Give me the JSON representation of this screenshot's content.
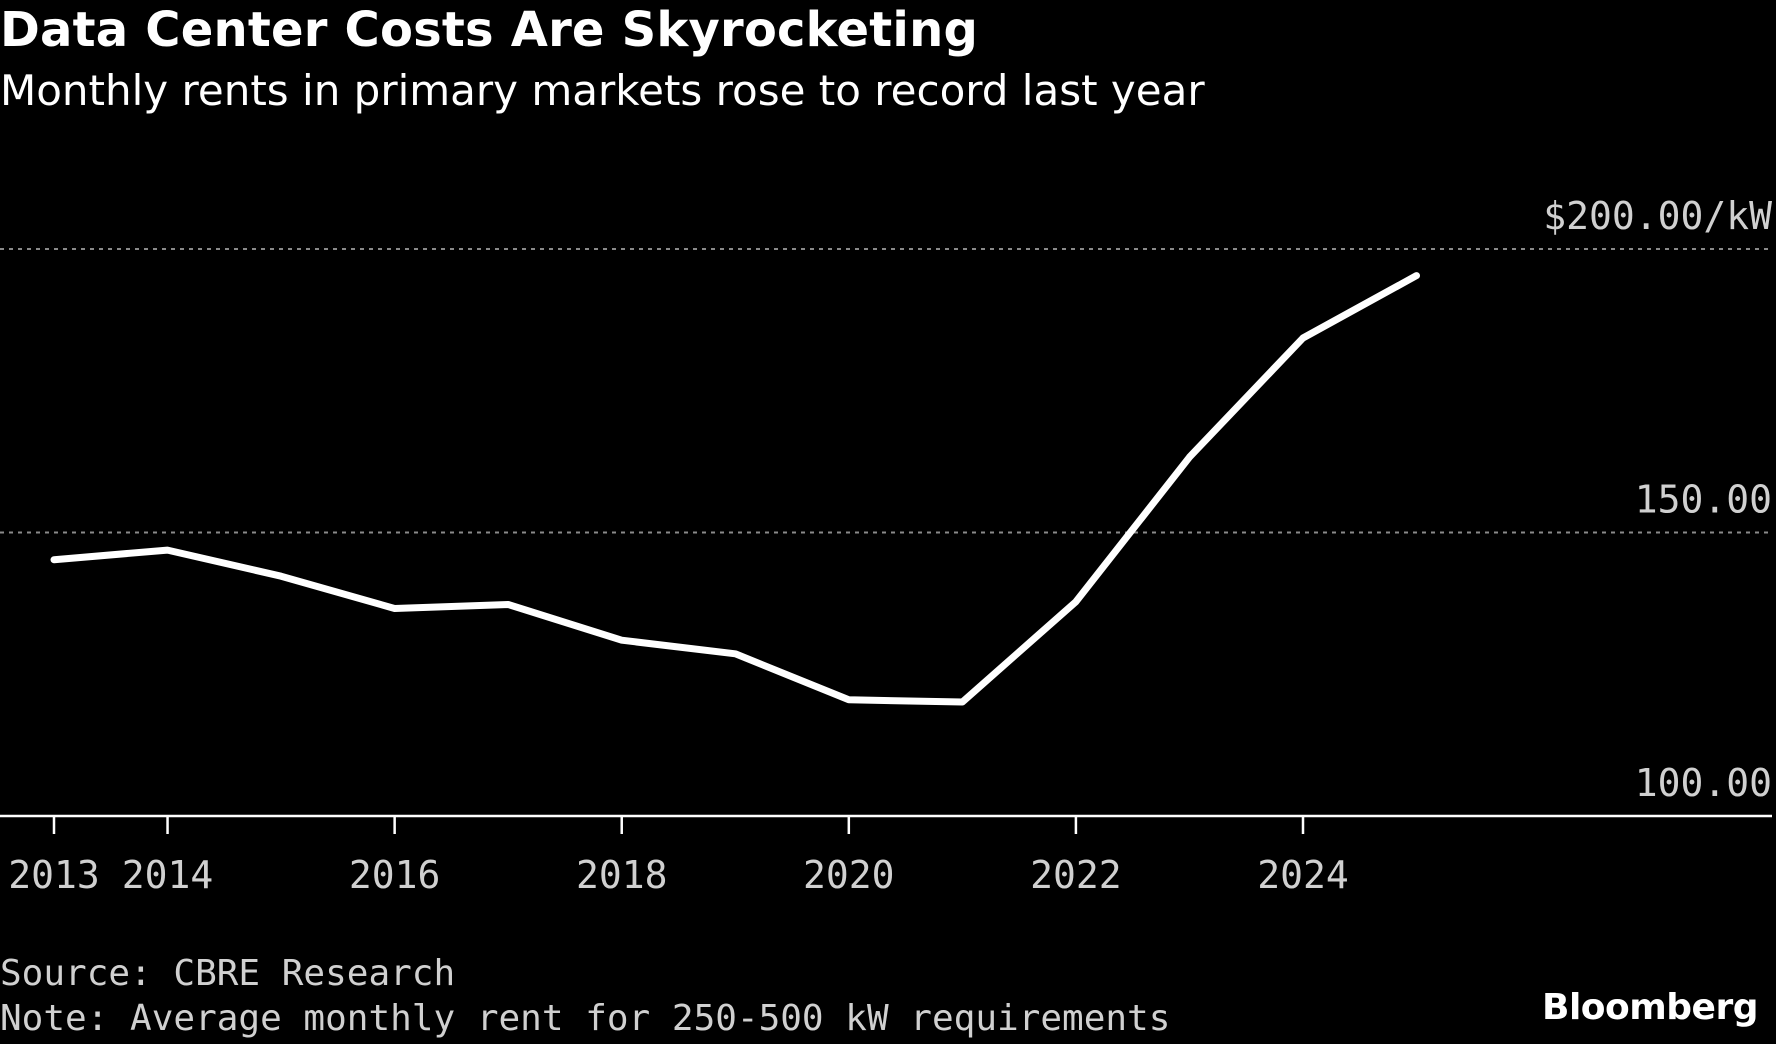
{
  "title": "Data Center Costs Are Skyrocketing",
  "subtitle": "Monthly rents in primary markets rose to record last year",
  "source": "Source: CBRE Research",
  "note": "Note: Average monthly rent for 250-500 kW requirements",
  "brand": "Bloomberg",
  "colors": {
    "background": "#000000",
    "line": "#ffffff",
    "grid": "#8a8a8a",
    "text": "#d0d0d0"
  },
  "chart_data": {
    "type": "line",
    "title": "Data Center Costs Are Skyrocketing",
    "subtitle": "Monthly rents in primary markets rose to record last year",
    "x": [
      2013,
      2014,
      2015,
      2016,
      2017,
      2018,
      2019,
      2020,
      2021,
      2022,
      2023,
      2024,
      2025
    ],
    "series": [
      {
        "values": [
          145.2,
          146.9,
          142.3,
          136.6,
          137.3,
          131.0,
          128.6,
          120.5,
          120.1,
          137.8,
          163.3,
          184.3,
          195.3
        ]
      }
    ],
    "xticks": [
      2013,
      2014,
      2016,
      2018,
      2020,
      2022,
      2024
    ],
    "xtick_labels": [
      "2013",
      "2014",
      "2016",
      "2018",
      "2020",
      "2022",
      "2024"
    ],
    "yticks": [
      100,
      150,
      200
    ],
    "ytick_labels": [
      "100.00",
      "150.00",
      "$200.00/kW"
    ],
    "ylim": [
      100,
      200
    ],
    "xlim": [
      2013,
      2026
    ],
    "grid": true,
    "legend": "none"
  }
}
